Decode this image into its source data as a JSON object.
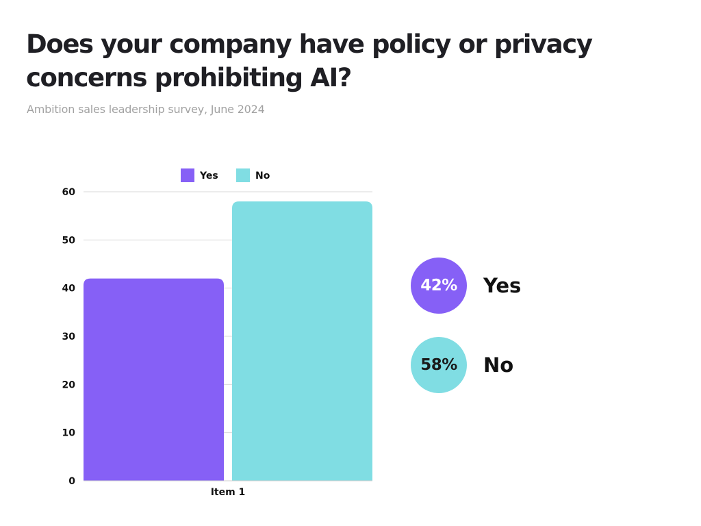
{
  "title": "Does your company have policy or privacy concerns prohibiting AI?",
  "subtitle": "Ambition sales leadership survey, June 2024",
  "colors": {
    "yes": "#8660f6",
    "no": "#80dde3",
    "grid": "#d9d9d9",
    "axis": "#cfcfcf"
  },
  "chart_data": {
    "type": "bar",
    "categories": [
      "Item 1"
    ],
    "series": [
      {
        "name": "Yes",
        "values": [
          42
        ]
      },
      {
        "name": "No",
        "values": [
          58
        ]
      }
    ],
    "ylim": [
      0,
      60
    ],
    "yticks": [
      0,
      10,
      20,
      30,
      40,
      50,
      60
    ],
    "grid": true,
    "legend": "top",
    "xlabel": "",
    "ylabel": ""
  },
  "summary": [
    {
      "percent": "42%",
      "label": "Yes",
      "color_key": "yes",
      "text_color": "#ffffff"
    },
    {
      "percent": "58%",
      "label": "No",
      "color_key": "no",
      "text_color": "#1a1a1a"
    }
  ]
}
